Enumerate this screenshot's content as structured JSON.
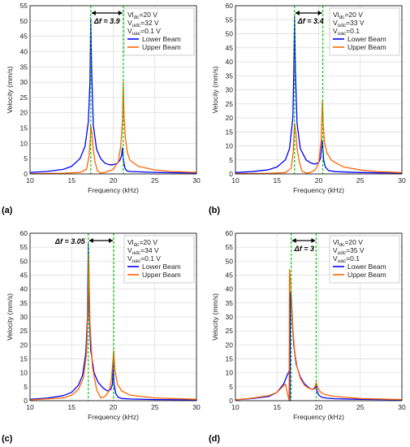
{
  "chart_data": [
    {
      "type": "line",
      "panel_label": "(a)",
      "xlabel": "Frequency (kHz)",
      "ylabel": "Velocity (mm/s)",
      "xlim": [
        10,
        30
      ],
      "ylim": [
        0,
        55
      ],
      "xticks": [
        10,
        15,
        20,
        25,
        30
      ],
      "yticks": [
        0,
        5,
        10,
        15,
        20,
        25,
        30,
        35,
        40,
        45,
        50,
        55
      ],
      "grid": true,
      "legend_position": "top-right",
      "params": [
        {
          "pre": "Vl",
          "sub": "dc",
          "post": "=20 V"
        },
        {
          "pre": "V",
          "sub": "udc",
          "post": "=32 V"
        },
        {
          "pre": "V",
          "sub": "uac",
          "post": "=0.1 V"
        }
      ],
      "delta_label": "Δf = 3.9",
      "delta_label_side": "right",
      "vlines": [
        17.3,
        21.2
      ],
      "series": [
        {
          "name": "Lower Beam",
          "color": "#0000ff",
          "x": [
            10,
            12,
            14,
            15,
            16,
            16.6,
            17.0,
            17.2,
            17.3,
            17.4,
            17.6,
            18,
            18.5,
            19,
            19.5,
            20,
            20.5,
            20.8,
            21.0,
            21.1,
            21.2,
            21.4,
            21.6,
            22,
            23,
            25,
            27,
            30
          ],
          "y": [
            0.5,
            0.8,
            1.5,
            2.5,
            5,
            9,
            17,
            30,
            51,
            35,
            16,
            8,
            5,
            3.5,
            3,
            3,
            3.5,
            4.5,
            6,
            8.5,
            5,
            2,
            1,
            0.8,
            0.7,
            0.5,
            0.4,
            0.3
          ]
        },
        {
          "name": "Upper Beam",
          "color": "#ff6600",
          "x": [
            10,
            14,
            16,
            16.8,
            17.1,
            17.25,
            17.3,
            17.45,
            17.6,
            17.8,
            18.1,
            18.5,
            19,
            20,
            20.6,
            20.9,
            21.1,
            21.2,
            21.3,
            21.45,
            21.7,
            22,
            23,
            25,
            27,
            30
          ],
          "y": [
            0.1,
            0.2,
            0.5,
            1.5,
            6,
            12,
            16,
            13,
            8,
            4,
            1,
            0.3,
            0.5,
            1.5,
            4,
            9,
            17,
            30,
            19,
            12,
            7,
            4.5,
            2.5,
            1.3,
            0.8,
            0.5
          ]
        }
      ]
    },
    {
      "type": "line",
      "panel_label": "(b)",
      "xlabel": "Frequency (kHz)",
      "ylabel": "Velocity (mm/s)",
      "xlim": [
        10,
        30
      ],
      "ylim": [
        0,
        60
      ],
      "xticks": [
        10,
        15,
        20,
        25,
        30
      ],
      "yticks": [
        0,
        5,
        10,
        15,
        20,
        25,
        30,
        35,
        40,
        45,
        50,
        55,
        60
      ],
      "grid": true,
      "legend_position": "top-right",
      "params": [
        {
          "pre": "Vl",
          "sub": "dc",
          "post": "=20 V"
        },
        {
          "pre": "V",
          "sub": "udc",
          "post": "=33 V"
        },
        {
          "pre": "V",
          "sub": "uac",
          "post": "=0.1"
        }
      ],
      "delta_label": "Δf = 3.4",
      "delta_label_side": "right",
      "vlines": [
        17.1,
        20.5
      ],
      "series": [
        {
          "name": "Lower Beam",
          "color": "#0000ff",
          "x": [
            10,
            12,
            14,
            15,
            16,
            16.5,
            16.9,
            17.0,
            17.1,
            17.2,
            17.4,
            17.8,
            18.5,
            19,
            19.5,
            20.0,
            20.2,
            20.35,
            20.45,
            20.6,
            20.8,
            21.2,
            22,
            25,
            30
          ],
          "y": [
            0.5,
            0.8,
            1.5,
            2.5,
            5,
            9,
            20,
            35,
            56,
            37,
            18,
            9,
            5,
            4,
            3.5,
            4,
            5.5,
            9,
            12,
            5,
            2.5,
            1.2,
            0.8,
            0.5,
            0.3
          ]
        },
        {
          "name": "Upper Beam",
          "color": "#ff6600",
          "x": [
            10,
            14,
            16,
            16.7,
            16.95,
            17.1,
            17.25,
            17.4,
            17.7,
            18.0,
            18.5,
            19,
            19.6,
            20.0,
            20.3,
            20.45,
            20.55,
            20.7,
            21.0,
            21.5,
            22,
            23,
            25,
            27,
            30
          ],
          "y": [
            0.1,
            0.2,
            0.5,
            2,
            8,
            18,
            15,
            9,
            4,
            1,
            0.3,
            0.5,
            1.5,
            4,
            12,
            26,
            18,
            11,
            7.5,
            5,
            4,
            2.5,
            1.4,
            0.8,
            0.5
          ]
        }
      ]
    },
    {
      "type": "line",
      "panel_label": "(c)",
      "xlabel": "Frequency (kHz)",
      "ylabel": "Velocity (mm/s)",
      "xlim": [
        10,
        30
      ],
      "ylim": [
        0,
        60
      ],
      "xticks": [
        10,
        15,
        20,
        25,
        30
      ],
      "yticks": [
        0,
        5,
        10,
        15,
        20,
        25,
        30,
        35,
        40,
        45,
        50,
        55,
        60
      ],
      "grid": true,
      "legend_position": "top-right",
      "params": [
        {
          "pre": "Vl",
          "sub": "dc",
          "post": "=20 V"
        },
        {
          "pre": "V",
          "sub": "udc",
          "post": "=34 V"
        },
        {
          "pre": "V",
          "sub": "uac",
          "post": "=0.1 V"
        }
      ],
      "delta_label": "Δf = 3.05",
      "delta_label_side": "left",
      "vlines": [
        17.0,
        20.05
      ],
      "series": [
        {
          "name": "Lower Beam",
          "color": "#0000ff",
          "x": [
            10,
            12,
            14,
            15,
            15.8,
            16.3,
            16.7,
            16.9,
            17.0,
            17.1,
            17.3,
            17.7,
            18.2,
            18.8,
            19.3,
            19.7,
            19.9,
            20.0,
            20.1,
            20.3,
            20.6,
            21,
            22,
            25,
            30
          ],
          "y": [
            0.5,
            0.9,
            1.8,
            3,
            5.5,
            9,
            17,
            30,
            56,
            32,
            18,
            10,
            6.5,
            4.5,
            3.5,
            4,
            6,
            14,
            6,
            2.5,
            1.2,
            0.8,
            0.6,
            0.4,
            0.3
          ]
        },
        {
          "name": "Upper Beam",
          "color": "#ff6600",
          "x": [
            10,
            14,
            15,
            15.8,
            16.4,
            16.8,
            16.95,
            17.05,
            17.2,
            17.5,
            18.0,
            18.5,
            19.0,
            19.5,
            19.8,
            19.95,
            20.05,
            20.2,
            20.5,
            21,
            22,
            25,
            30
          ],
          "y": [
            0.3,
            1,
            2,
            4,
            8,
            17,
            33,
            52,
            28,
            12,
            4,
            1,
            1.5,
            3.5,
            8,
            14,
            18,
            11,
            6,
            3.5,
            2,
            1,
            0.5
          ]
        }
      ]
    },
    {
      "type": "line",
      "panel_label": "(d)",
      "xlabel": "Frequency (kHz)",
      "ylabel": "Velocity (mm/s)",
      "xlim": [
        10,
        30
      ],
      "ylim": [
        0,
        60
      ],
      "xticks": [
        10,
        15,
        20,
        25,
        30
      ],
      "yticks": [
        0,
        5,
        10,
        15,
        20,
        25,
        30,
        35,
        40,
        45,
        50,
        55,
        60
      ],
      "grid": true,
      "legend_position": "top-right",
      "params": [
        {
          "pre": "Vl",
          "sub": "dc",
          "post": "=20 V"
        },
        {
          "pre": "V",
          "sub": "udc",
          "post": "=35 V"
        },
        {
          "pre": "V",
          "sub": "uac",
          "post": "=0.1"
        }
      ],
      "delta_label": "Δf = 3",
      "delta_label_side": "right",
      "vlines": [
        16.7,
        19.7
      ],
      "series": [
        {
          "name": "Lower Beam",
          "color": "#0000ff",
          "x": [
            10,
            12,
            14,
            15,
            15.8,
            16.2,
            16.5,
            16.55,
            16.6,
            16.7,
            16.85,
            17.0,
            17.3,
            17.8,
            18.3,
            18.9,
            19.3,
            19.55,
            19.7,
            19.8,
            20.0,
            20.4,
            21,
            22,
            25,
            30
          ],
          "y": [
            0.3,
            0.8,
            1.5,
            3,
            6,
            9,
            11,
            0,
            39,
            38,
            28,
            20,
            13,
            8.5,
            6,
            4.5,
            4,
            4.5,
            5.5,
            3.5,
            2,
            1.2,
            0.9,
            0.7,
            0.5,
            0.3
          ]
        },
        {
          "name": "Upper Beam",
          "color": "#ff6600",
          "x": [
            10,
            12,
            14,
            15,
            16,
            16.45,
            16.5,
            16.6,
            16.75,
            16.9,
            17.1,
            17.4,
            17.8,
            18.3,
            18.8,
            19.3,
            19.55,
            19.7,
            19.85,
            20.1,
            20.5,
            21,
            22,
            25,
            30
          ],
          "y": [
            0.3,
            0.9,
            1.8,
            3,
            6,
            0,
            47,
            43,
            35,
            26,
            18,
            12,
            8,
            5.5,
            4.5,
            4,
            5,
            6.5,
            5,
            3.5,
            2.5,
            2,
            1.5,
            0.8,
            0.4
          ]
        }
      ]
    }
  ]
}
